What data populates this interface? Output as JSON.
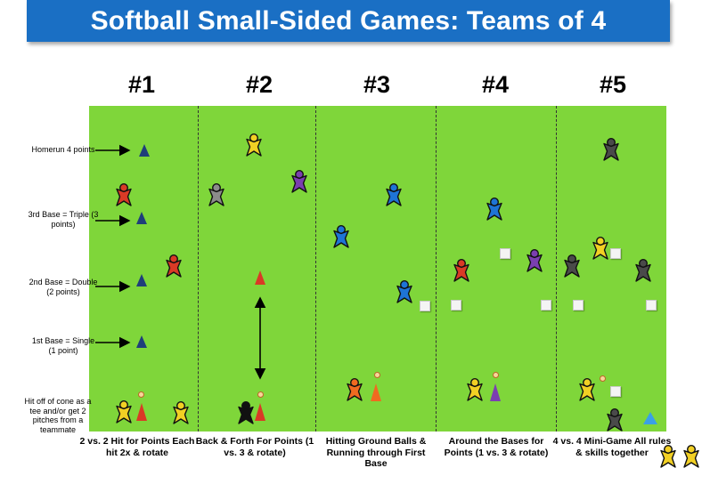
{
  "title": "Softball Small-Sided Games: Teams of 4",
  "games": [
    {
      "number": "#1",
      "caption": "2 vs. 2 Hit for Points Each hit 2x & rotate"
    },
    {
      "number": "#2",
      "caption": "Back & Forth For Points (1 vs. 3 & rotate)"
    },
    {
      "number": "#3",
      "caption": "Hitting Ground Balls & Running through First Base"
    },
    {
      "number": "#4",
      "caption": "Around the Bases for Points (1 vs. 3 & rotate)"
    },
    {
      "number": "#5",
      "caption": "4 vs. 4 Mini-Game All rules & skills together"
    }
  ],
  "zone_labels": {
    "homerun": "Homerun 4 points",
    "third": "3rd Base = Triple (3 points)",
    "second": "2nd Base = Double (2 points)",
    "first": "1st Base = Single (1 point)",
    "hit": "Hit off of cone as a tee and/or get 2 pitches from a teammate"
  },
  "colors": {
    "banner": "#1a6fc4",
    "field": "#7fd63a",
    "navy": "#1f3e7a",
    "red": "#d93a26",
    "yellow": "#f2d024",
    "blue": "#1e74d6",
    "purple": "#7b3fb0",
    "gray": "#8c8c8c",
    "dark_gray": "#4a4a4a",
    "orange": "#ef6a20",
    "black": "#111111",
    "light_blue": "#3aa0e6"
  }
}
